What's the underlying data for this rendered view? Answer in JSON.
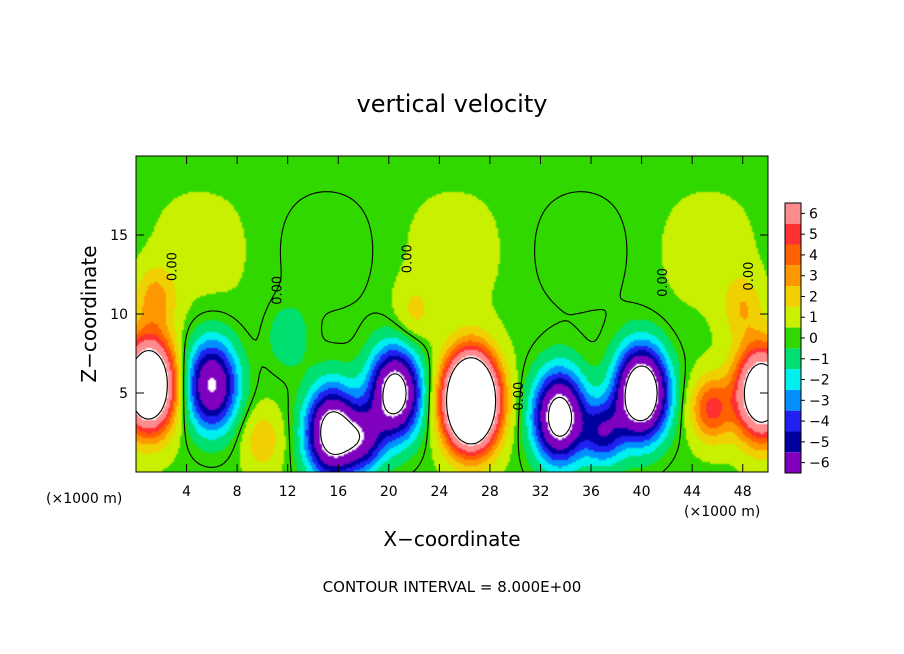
{
  "chart_data": {
    "type": "heatmap",
    "title": "vertical velocity",
    "xlabel": "X−coordinate",
    "ylabel": "Z−coordinate",
    "x_unit_label": "(×1000 m)",
    "xlim": [
      0,
      50
    ],
    "ylim": [
      0,
      20
    ],
    "x_ticks": [
      4,
      8,
      12,
      16,
      20,
      24,
      28,
      32,
      36,
      40,
      44,
      48
    ],
    "x_tick_labels": [
      "4",
      "8",
      "12",
      "16",
      "20",
      "24",
      "28",
      "32",
      "36",
      "40",
      "44",
      "48"
    ],
    "y_ticks": [
      5,
      10,
      15
    ],
    "y_tick_labels": [
      "5",
      "10",
      "15"
    ],
    "colorbar": {
      "levels": [
        6,
        5,
        4,
        3,
        2,
        1,
        0,
        -1,
        -2,
        -3,
        -4,
        -5,
        -6
      ],
      "labels": [
        "6",
        "5",
        "4",
        "3",
        "2",
        "1",
        "0",
        "−1",
        "−2",
        "−3",
        "−4",
        "−5",
        "−6"
      ],
      "colors": [
        "#ff8c8c",
        "#ff3030",
        "#ff6000",
        "#ff9800",
        "#f0d000",
        "#c8f000",
        "#30d800",
        "#00e070",
        "#00f0f0",
        "#0090ff",
        "#2020f0",
        "#0000a0",
        "#8000c0"
      ]
    },
    "contour_labels": [
      "0.00",
      "0.00",
      "0.00",
      "0.00",
      "0.00",
      "0.00"
    ],
    "updrafts": [
      {
        "x": 1.0,
        "z": 5.5,
        "w": 14
      },
      {
        "x": 26.5,
        "z": 4.5,
        "w": 20
      },
      {
        "x": 49.5,
        "z": 5.0,
        "w": 12
      },
      {
        "x": 45.5,
        "z": 4.0,
        "w": 4.5
      },
      {
        "x": 1.5,
        "z": 11.0,
        "w": 2.5
      },
      {
        "x": 48.0,
        "z": 10.5,
        "w": 2.0
      },
      {
        "x": 10.0,
        "z": 2.0,
        "w": 2.0
      },
      {
        "x": 22.0,
        "z": 10.0,
        "w": 1.5
      }
    ],
    "downdrafts": [
      {
        "x": 6.0,
        "z": 5.5,
        "w": -8
      },
      {
        "x": 15.5,
        "z": 2.5,
        "w": -10
      },
      {
        "x": 20.5,
        "z": 5.0,
        "w": -10
      },
      {
        "x": 33.5,
        "z": 3.5,
        "w": -10
      },
      {
        "x": 40.0,
        "z": 5.0,
        "w": -12
      },
      {
        "x": 18.0,
        "z": 2.0,
        "w": -5
      },
      {
        "x": 37.0,
        "z": 2.5,
        "w": -5
      },
      {
        "x": 12.0,
        "z": 8.5,
        "w": -1.5
      }
    ],
    "footnote": "CONTOUR INTERVAL = 8.000E+00"
  }
}
